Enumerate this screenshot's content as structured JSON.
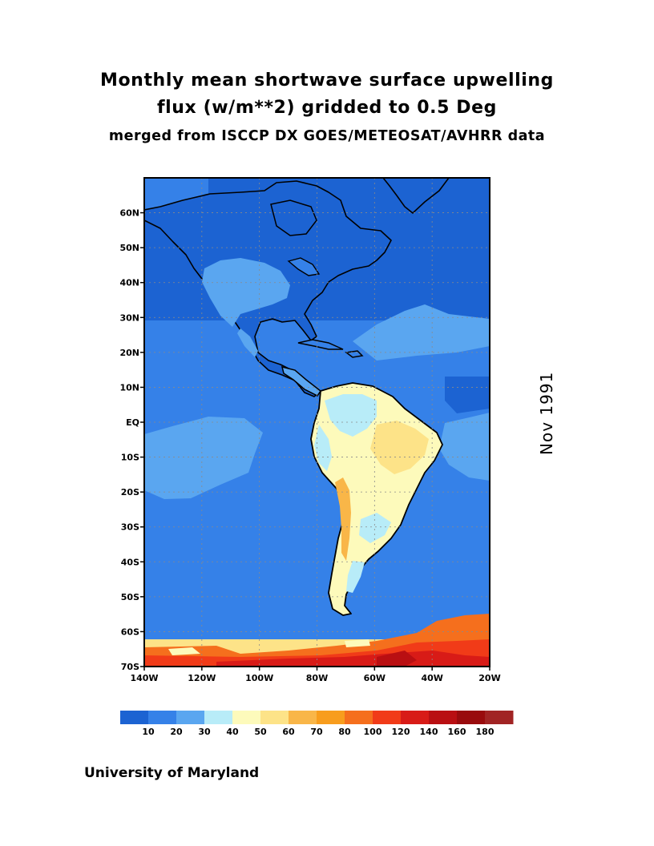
{
  "title": {
    "line1": "Monthly mean shortwave surface upwelling",
    "line2": "flux (w/m**2) gridded to 0.5 Deg",
    "line3": "merged from ISCCP DX GOES/METEOSAT/AVHRR data"
  },
  "date_label": "Nov 1991",
  "credit": "University of Maryland",
  "map": {
    "lon_range": [
      -140,
      -20
    ],
    "lat_range": [
      -70,
      70
    ],
    "lat_ticks": [
      {
        "value": 60,
        "label": "60N"
      },
      {
        "value": 50,
        "label": "50N"
      },
      {
        "value": 40,
        "label": "40N"
      },
      {
        "value": 30,
        "label": "30N"
      },
      {
        "value": 20,
        "label": "20N"
      },
      {
        "value": 10,
        "label": "10N"
      },
      {
        "value": 0,
        "label": "EQ"
      },
      {
        "value": -10,
        "label": "10S"
      },
      {
        "value": -20,
        "label": "20S"
      },
      {
        "value": -30,
        "label": "30S"
      },
      {
        "value": -40,
        "label": "40S"
      },
      {
        "value": -50,
        "label": "50S"
      },
      {
        "value": -60,
        "label": "60S"
      },
      {
        "value": -70,
        "label": "70S"
      }
    ],
    "lon_ticks": [
      {
        "value": -140,
        "label": "140W"
      },
      {
        "value": -120,
        "label": "120W"
      },
      {
        "value": -100,
        "label": "100W"
      },
      {
        "value": -80,
        "label": "80W"
      },
      {
        "value": -60,
        "label": "60W"
      },
      {
        "value": -40,
        "label": "40W"
      },
      {
        "value": -20,
        "label": "20W"
      }
    ],
    "grid": "dotted"
  },
  "colorbar": {
    "colors": [
      "#1c63d2",
      "#3581e8",
      "#5aa6f0",
      "#b8ecf8",
      "#fdfabb",
      "#fde388",
      "#f9b648",
      "#f89d1d",
      "#f56f1d",
      "#f13b18",
      "#d81b17",
      "#b90f12",
      "#990b0d",
      "#a12424"
    ],
    "labels": [
      "10",
      "20",
      "30",
      "40",
      "50",
      "60",
      "70",
      "80",
      "100",
      "120",
      "140",
      "160",
      "180"
    ]
  }
}
